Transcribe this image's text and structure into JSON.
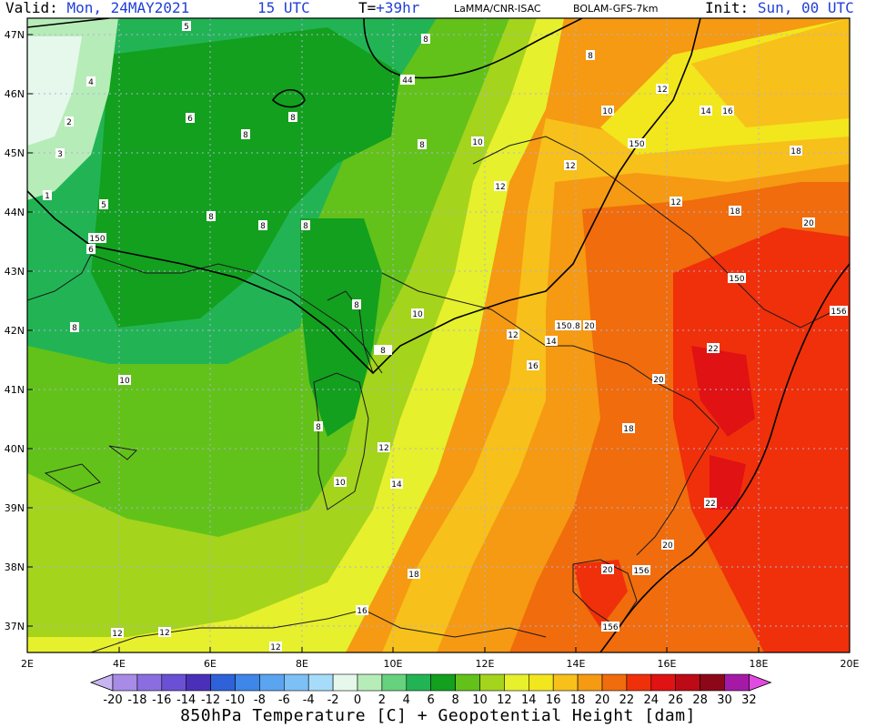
{
  "header": {
    "valid_label": "Valid:",
    "valid_value": "Mon, 24MAY2021",
    "valid_time": "15 UTC",
    "t_label": "T=",
    "t_value": "+39hr",
    "source": "LaMMA/CNR-ISAC",
    "model": "BOLAM-GFS-7km",
    "init_label": "Init:",
    "init_value": "Sun, 00 UTC"
  },
  "axes": {
    "lat_labels": [
      "47N",
      "46N",
      "45N",
      "44N",
      "43N",
      "42N",
      "41N",
      "40N",
      "39N",
      "38N",
      "37N"
    ],
    "lon_labels": [
      "2E",
      "4E",
      "6E",
      "8E",
      "10E",
      "12E",
      "14E",
      "16E",
      "18E",
      "20E"
    ]
  },
  "colorbar": {
    "labels": [
      "-20",
      "-18",
      "-16",
      "-14",
      "-12",
      "-10",
      "-8",
      "-6",
      "-4",
      "-2",
      "0",
      "2",
      "4",
      "6",
      "8",
      "10",
      "12",
      "14",
      "16",
      "18",
      "20",
      "22",
      "24",
      "26",
      "28",
      "30",
      "32"
    ],
    "colors": [
      "#c8b4f0",
      "#a78be6",
      "#8a6ee0",
      "#6a50d4",
      "#4a30b8",
      "#2f62d8",
      "#3e86e8",
      "#5aa4f0",
      "#7cc0f6",
      "#a6dcfa",
      "#e6f8ec",
      "#b6ecb8",
      "#66d27e",
      "#22b454",
      "#12a01e",
      "#62c21a",
      "#a4d41c",
      "#e6f02c",
      "#f2e61c",
      "#f7c01a",
      "#f59a12",
      "#f06c0c",
      "#f0300a",
      "#e01214",
      "#bc0a16",
      "#8c0818",
      "#a41aa6",
      "#e04ae0"
    ]
  },
  "contour_labels": [
    "5",
    "8",
    "8",
    "4",
    "44",
    "6",
    "8",
    "12",
    "10",
    "8",
    "16",
    "14",
    "2",
    "8",
    "8",
    "10",
    "150",
    "3",
    "8",
    "12",
    "18",
    "12",
    "1",
    "5",
    "18",
    "8",
    "8",
    "8",
    "20",
    "150",
    "6",
    "12",
    "8",
    "10",
    "150",
    "18",
    "20",
    "12",
    "156",
    "14",
    "22",
    "150",
    "10",
    "16",
    "20",
    "8",
    "18",
    "12",
    "10",
    "14",
    "22",
    "20",
    "18",
    "20",
    "156",
    "16",
    "156",
    "12",
    "12",
    "12"
  ],
  "caption": "850hPa Temperature [C] + Geopotential Height [dam]"
}
